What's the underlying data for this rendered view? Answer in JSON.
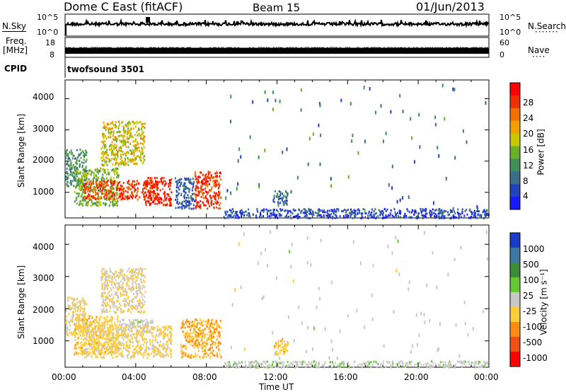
{
  "header": {
    "station": "Dome C East (fitACF)",
    "beam": "Beam 15",
    "date": "01/Jun/2013"
  },
  "panels": {
    "nsky": {
      "label": "N.Sky",
      "tick_top": "10^5",
      "tick_bottom": "10^0",
      "right_label": "N.Search",
      "right_tick_top": "10^5",
      "right_tick_bottom": "10^0"
    },
    "freq": {
      "label_line1": "Freq.",
      "label_line2": "[MHz]",
      "tick_top": "18",
      "tick_bottom": "8",
      "right_label": "Nave",
      "right_tick_top": "60",
      "right_tick_bottom": "0"
    },
    "cpid": {
      "label": "CPID",
      "value": "twofsound 3501"
    }
  },
  "power_panel": {
    "ylabel": "Slant Range [km]",
    "yticks": [
      "1000",
      "2000",
      "3000",
      "4000"
    ],
    "colorbar_label": "Power [dB]",
    "colorbar_ticks": [
      "4",
      "8",
      "12",
      "16",
      "20",
      "24",
      "28"
    ],
    "colorbar_colors": [
      "#1a1aff",
      "#2244bb",
      "#3c6e8a",
      "#3e8f5a",
      "#6ab02a",
      "#c8c800",
      "#f0a000",
      "#f07000",
      "#f03000",
      "#ff0000"
    ]
  },
  "velocity_panel": {
    "ylabel": "Slant Range [km]",
    "yticks": [
      "1000",
      "2000",
      "3000",
      "4000"
    ],
    "colorbar_label": "Velocity [m s⁻¹]",
    "colorbar_ticks": [
      "1000",
      "500",
      "100",
      "25",
      "-25",
      "-100",
      "-500",
      "-1000"
    ],
    "colorbar_colors": [
      "#1a3cc8",
      "#3c78a0",
      "#3c8c3c",
      "#64c832",
      "#c8c8c8",
      "#ffcc3c",
      "#ff8c14",
      "#f05014",
      "#ff0000"
    ]
  },
  "xaxis": {
    "label": "Time UT",
    "ticks": [
      "00:00",
      "04:00",
      "08:00",
      "12:00",
      "16:00",
      "20:00",
      "00:00"
    ]
  },
  "chart_data": {
    "type": "heatmap",
    "title": "Dome C East (fitACF)",
    "x_range_hours": [
      0,
      24
    ],
    "y_range_km": [
      180,
      4600
    ],
    "xlabel": "Time UT",
    "ylabel": "Slant Range [km]",
    "power_range_db": [
      0,
      31
    ],
    "velocity_range": [
      -1200,
      1200
    ],
    "power_regions": [
      {
        "t": [
          0.0,
          1.2
        ],
        "r": [
          1200,
          2400
        ],
        "power": 10
      },
      {
        "t": [
          0.5,
          3.0
        ],
        "r": [
          600,
          1800
        ],
        "power": 14
      },
      {
        "t": [
          1.0,
          5.2
        ],
        "r": [
          800,
          1400
        ],
        "power": 26
      },
      {
        "t": [
          2.0,
          4.5
        ],
        "r": [
          1900,
          3300
        ],
        "power": 18
      },
      {
        "t": [
          4.5,
          6.0
        ],
        "r": [
          600,
          1500
        ],
        "power": 28
      },
      {
        "t": [
          6.2,
          7.3
        ],
        "r": [
          500,
          1500
        ],
        "power": 6
      },
      {
        "t": [
          7.3,
          8.8
        ],
        "r": [
          500,
          1700
        ],
        "power": 27
      },
      {
        "t": [
          11.8,
          12.6
        ],
        "r": [
          600,
          1100
        ],
        "power": 8
      },
      {
        "t": [
          9.0,
          24.0
        ],
        "r": [
          200,
          500
        ],
        "power": 5
      }
    ],
    "velocity_regions": [
      {
        "t": [
          0.0,
          1.2
        ],
        "r": [
          1200,
          2400
        ],
        "velocity": -150
      },
      {
        "t": [
          0.5,
          3.0
        ],
        "r": [
          600,
          1800
        ],
        "velocity": -300
      },
      {
        "t": [
          3.0,
          5.0
        ],
        "r": [
          1300,
          1700
        ],
        "velocity": 0
      },
      {
        "t": [
          1.0,
          6.0
        ],
        "r": [
          500,
          1500
        ],
        "velocity": -200
      },
      {
        "t": [
          2.0,
          4.5
        ],
        "r": [
          1900,
          3300
        ],
        "velocity": -120
      },
      {
        "t": [
          6.5,
          8.8
        ],
        "r": [
          500,
          1700
        ],
        "velocity": -400
      },
      {
        "t": [
          11.8,
          12.6
        ],
        "r": [
          600,
          1100
        ],
        "velocity": -300
      },
      {
        "t": [
          9.0,
          24.0
        ],
        "r": [
          200,
          400
        ],
        "velocity": 50
      }
    ]
  }
}
